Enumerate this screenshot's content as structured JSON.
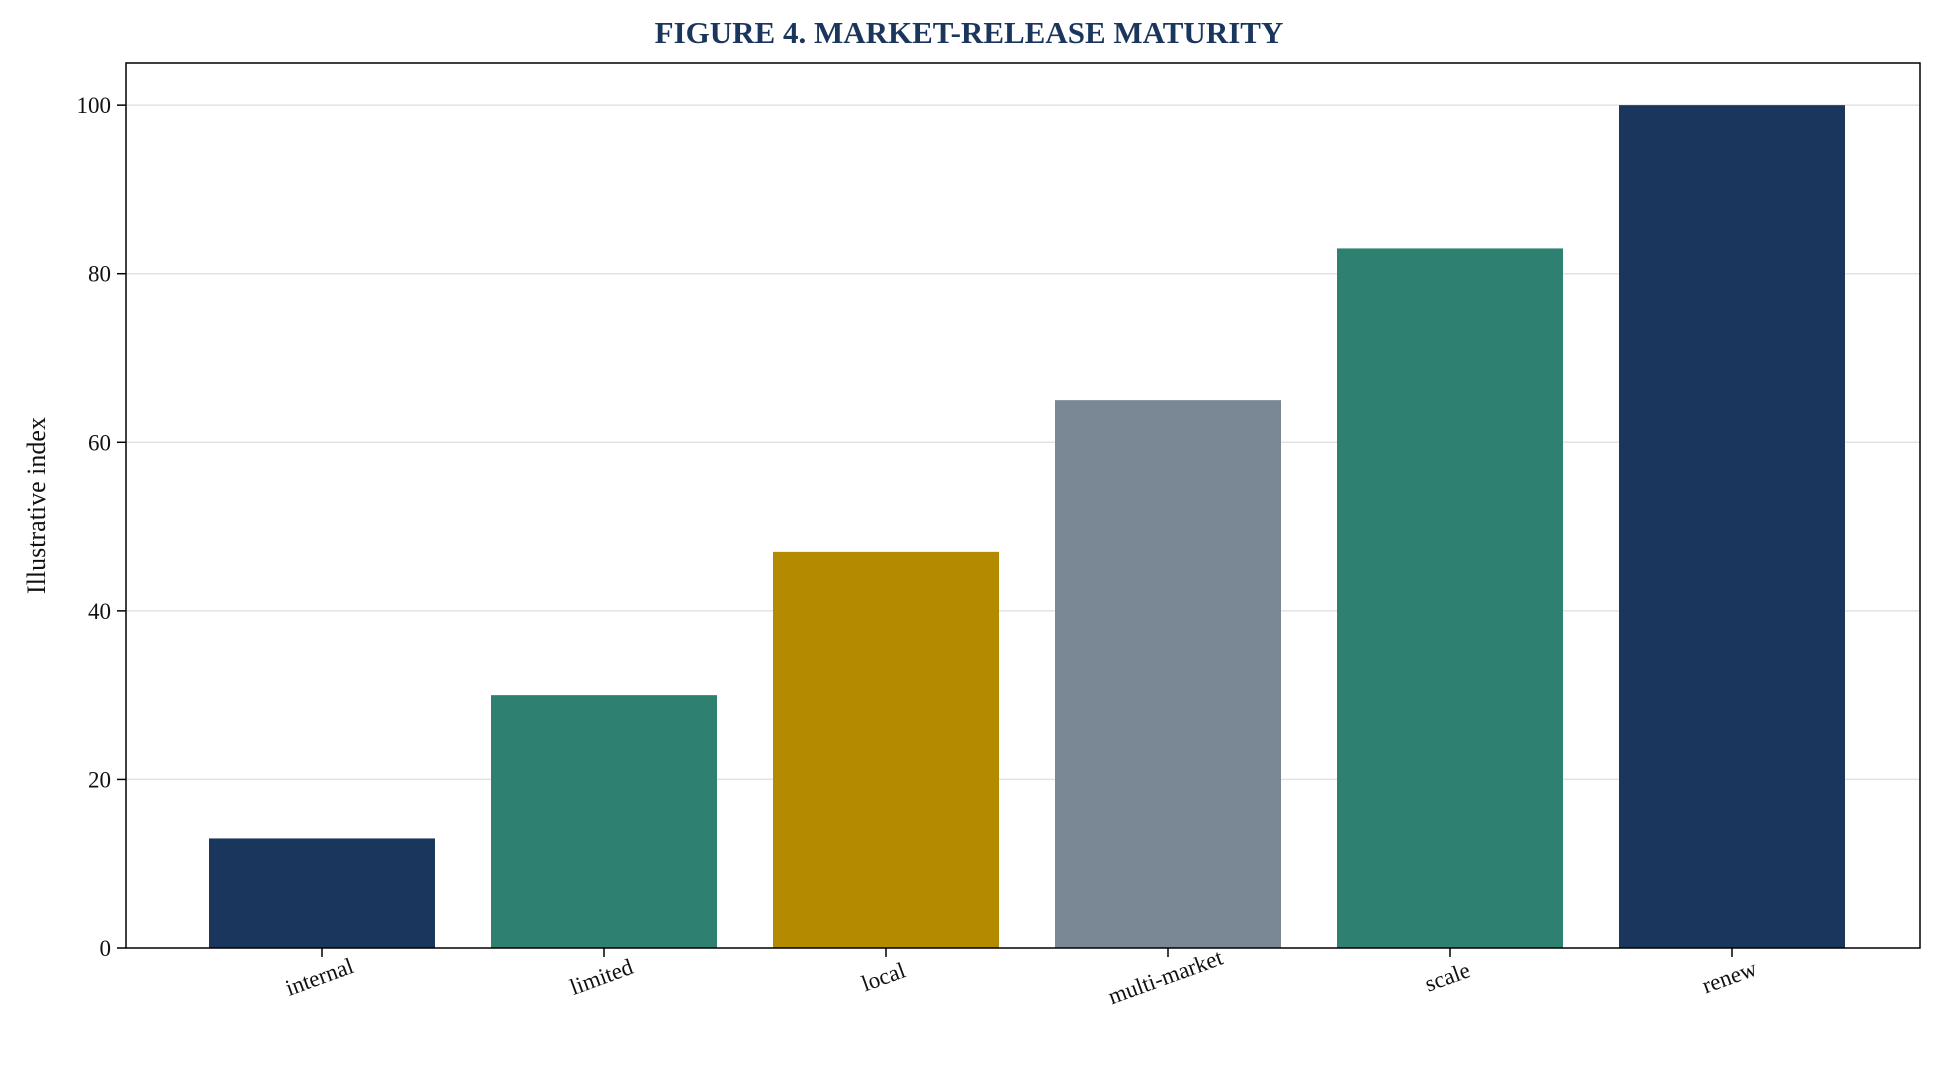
{
  "chart_data": {
    "type": "bar",
    "title": "FIGURE 4. MARKET-RELEASE MATURITY",
    "ylabel": "Illustrative index",
    "xlabel": "",
    "categories": [
      "internal",
      "limited",
      "local",
      "multi-market",
      "scale",
      "renew"
    ],
    "values": [
      13,
      30,
      47,
      65,
      83,
      100
    ],
    "bar_colors": [
      "#1a365d",
      "#2e8070",
      "#b38a00",
      "#7a8795",
      "#2e8070",
      "#1a365d"
    ],
    "ylim": [
      0,
      105
    ],
    "yticks": [
      0,
      20,
      40,
      60,
      80,
      100
    ],
    "grid": "horizontal",
    "legend": "none"
  }
}
